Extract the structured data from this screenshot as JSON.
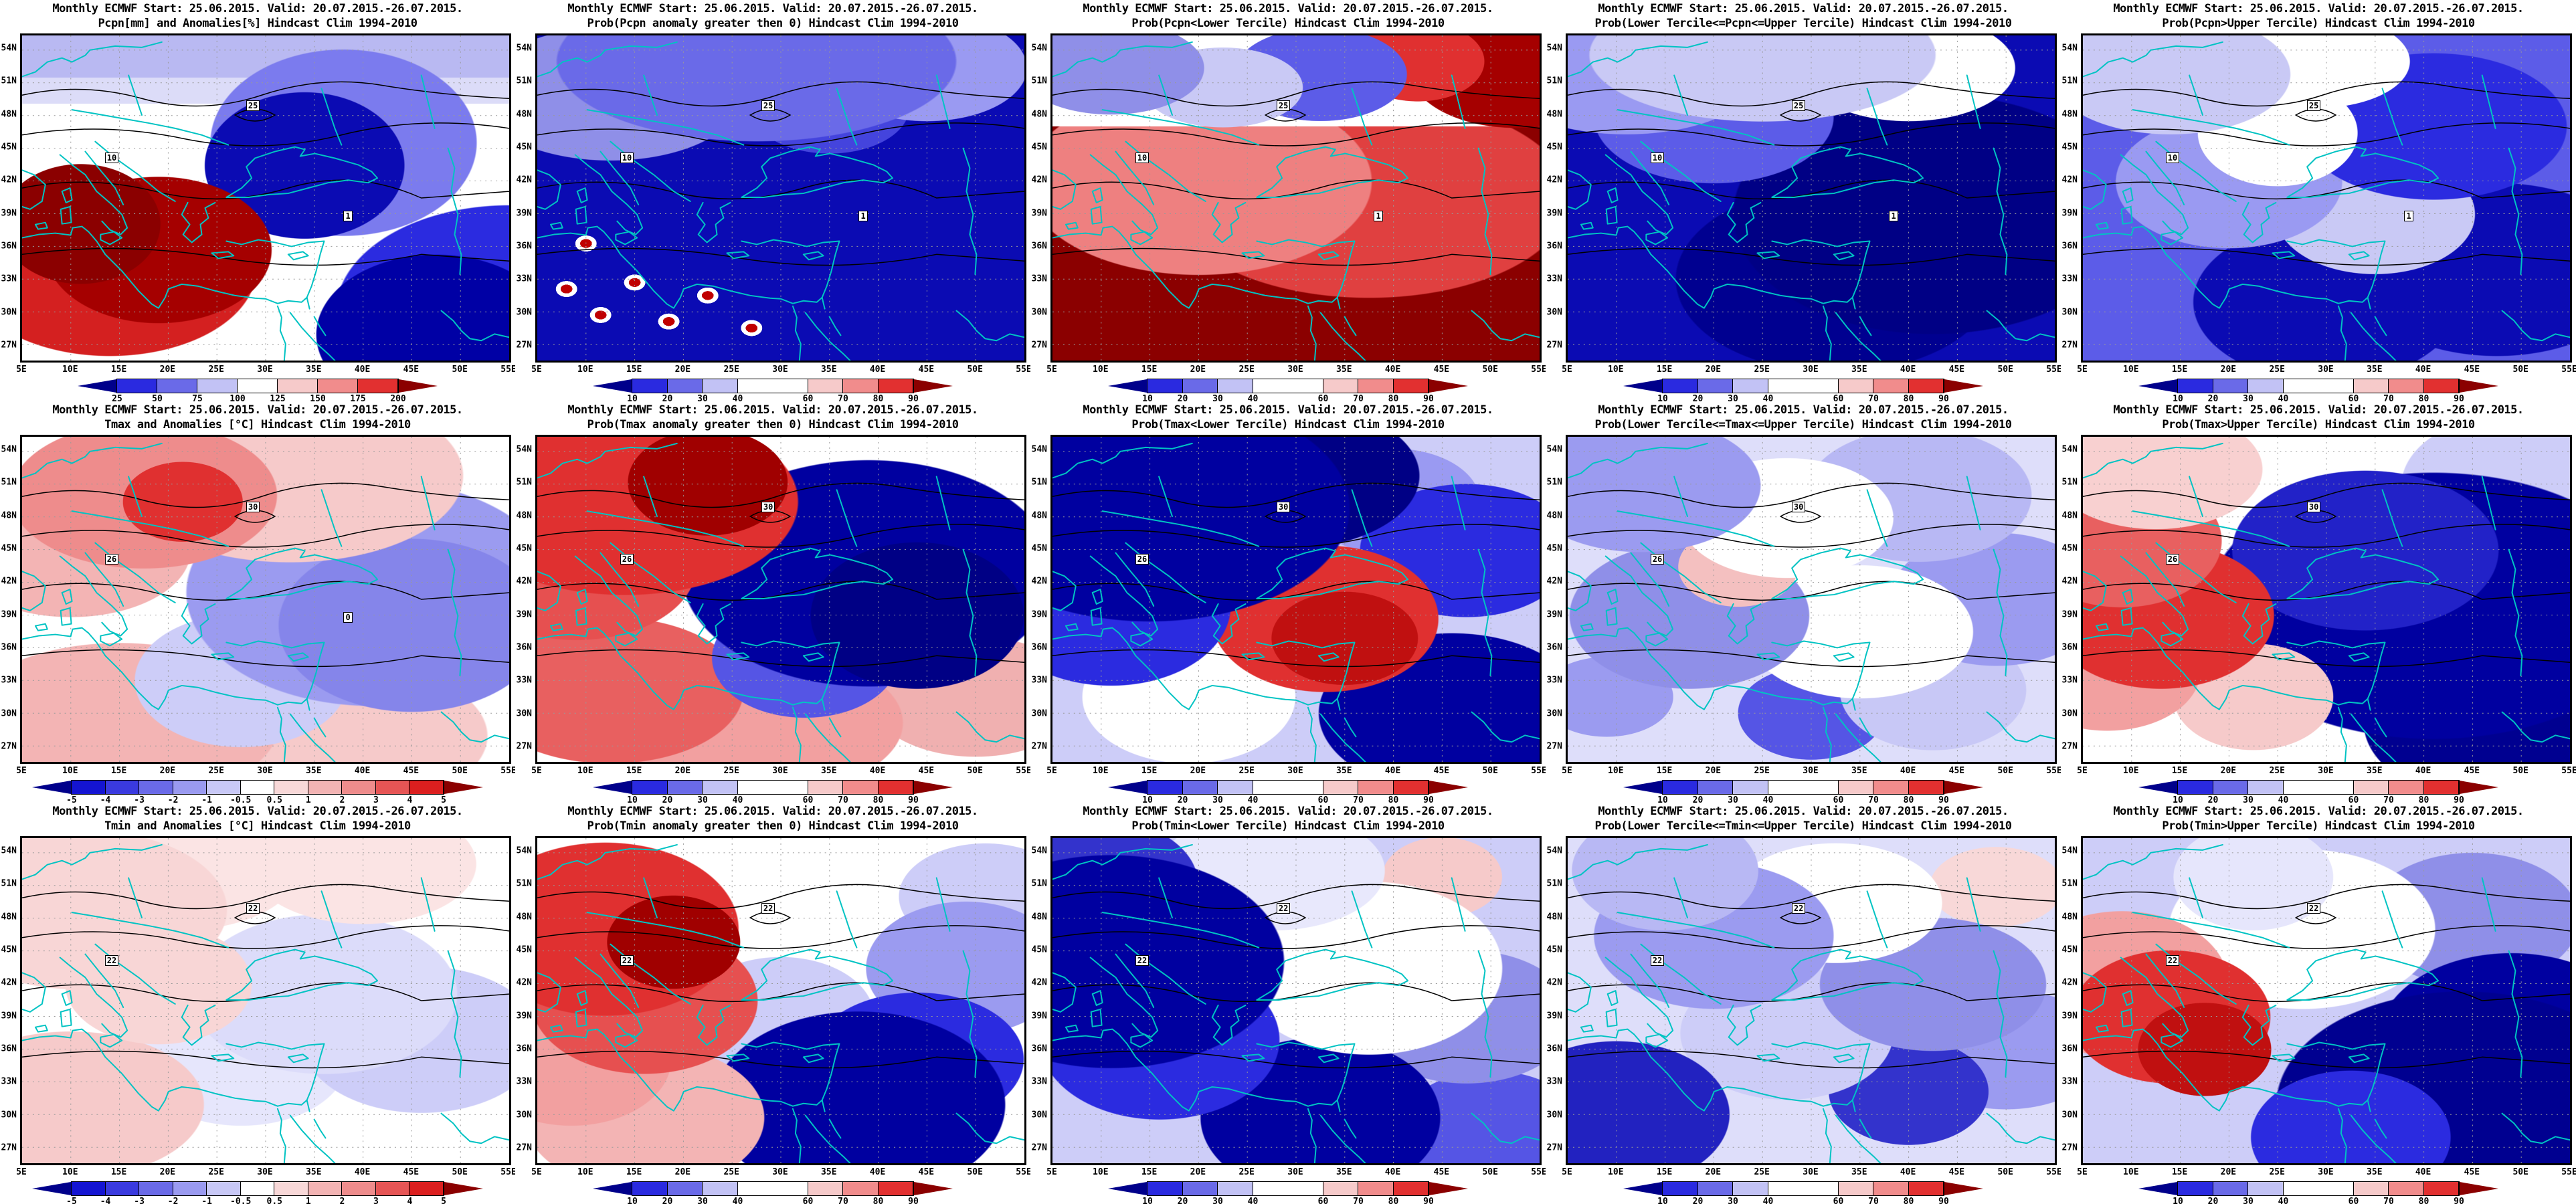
{
  "figure": {
    "title_line1": "Monthly ECMWF Start: 25.06.2015. Valid: 20.07.2015.-26.07.2015.",
    "hindcast_clim": "Hindcast Clim 1994-2010"
  },
  "axes": {
    "lat_labels": [
      "54N",
      "51N",
      "48N",
      "45N",
      "42N",
      "39N",
      "36N",
      "33N",
      "30N",
      "27N"
    ],
    "lon_labels": [
      "5E",
      "10E",
      "15E",
      "20E",
      "25E",
      "30E",
      "35E",
      "40E",
      "45E",
      "50E",
      "55E"
    ]
  },
  "map_style_colors": {
    "coastline": "#00c3c3",
    "contour": "#000000",
    "gridline": "#999999",
    "border": "#000000"
  },
  "colorbars": {
    "pcpn": {
      "ticks": [
        "25",
        "50",
        "75",
        "100",
        "125",
        "150",
        "175",
        "200"
      ],
      "tick_positions": [
        0,
        1,
        2,
        3,
        4,
        5,
        6,
        7
      ],
      "segment_widths": [
        1,
        1,
        1,
        1,
        1,
        1,
        1
      ],
      "segment_colors": [
        "#2a2ae0",
        "#6a6ae8",
        "#c2c2f5",
        "#ffffff",
        "#f6caca",
        "#f18c8c",
        "#e23030"
      ],
      "arrow_left_color": "#00008b",
      "arrow_right_color": "#8b0000"
    },
    "prob": {
      "ticks": [
        "10",
        "20",
        "30",
        "40",
        "60",
        "70",
        "80",
        "90"
      ],
      "tick_positions": [
        0,
        1,
        2,
        3,
        5,
        6,
        7,
        8
      ],
      "segment_widths": [
        1,
        1,
        1,
        2,
        1,
        1,
        1
      ],
      "segment_colors": [
        "#2a2ae0",
        "#6a6ae8",
        "#c2c2f5",
        "#ffffff",
        "#f6caca",
        "#f18c8c",
        "#e23030"
      ],
      "arrow_left_color": "#00008b",
      "arrow_right_color": "#8b0000"
    },
    "temp": {
      "ticks": [
        "-5",
        "-4",
        "-3",
        "-2",
        "-1",
        "-0.5",
        "0.5",
        "1",
        "2",
        "3",
        "4",
        "5"
      ],
      "tick_positions": [
        0,
        1,
        2,
        3,
        4,
        5,
        6,
        7,
        8,
        9,
        10,
        11
      ],
      "segment_widths": [
        1,
        1,
        1,
        1,
        1,
        1,
        1,
        1,
        1,
        1,
        1
      ],
      "segment_colors": [
        "#1414d2",
        "#3a3adf",
        "#6a6ae8",
        "#9a9af0",
        "#c8c8f6",
        "#ffffff",
        "#f8d8d8",
        "#f3b4b4",
        "#ee8c8c",
        "#e65555",
        "#dc1f1f"
      ],
      "arrow_left_color": "#00008b",
      "arrow_right_color": "#8b0000"
    }
  },
  "panels": [
    {
      "id": "r1c1",
      "subtitle": "Pcpn[mm] and Anomalies[%] Hindcast Clim 1994-2010",
      "colorbar": "pcpn",
      "contour_labels": [
        "10",
        "25",
        "1"
      ]
    },
    {
      "id": "r1c2",
      "subtitle": "Prob(Pcpn anomaly greater then 0) Hindcast Clim 1994-2010",
      "colorbar": "prob",
      "contour_labels": [
        "10",
        "25",
        "1"
      ]
    },
    {
      "id": "r1c3",
      "subtitle": "Prob(Pcpn<Lower Tercile) Hindcast Clim 1994-2010",
      "colorbar": "prob",
      "contour_labels": [
        "10",
        "25",
        "1"
      ]
    },
    {
      "id": "r1c4",
      "subtitle": "Prob(Lower Tercile<=Pcpn<=Upper Tercile) Hindcast Clim 1994-2010",
      "colorbar": "prob",
      "contour_labels": [
        "10",
        "25",
        "1"
      ]
    },
    {
      "id": "r1c5",
      "subtitle": "Prob(Pcpn>Upper Tercile) Hindcast Clim 1994-2010",
      "colorbar": "prob",
      "contour_labels": [
        "10",
        "25",
        "1"
      ]
    },
    {
      "id": "r2c1",
      "subtitle": "Tmax and Anomalies [°C] Hindcast Clim 1994-2010",
      "colorbar": "temp",
      "contour_labels": [
        "26",
        "30",
        "0"
      ]
    },
    {
      "id": "r2c2",
      "subtitle": "Prob(Tmax anomaly greater then 0) Hindcast Clim 1994-2010",
      "colorbar": "prob",
      "contour_labels": [
        "26",
        "30"
      ]
    },
    {
      "id": "r2c3",
      "subtitle": "Prob(Tmax<Lower Tercile) Hindcast Clim 1994-2010",
      "colorbar": "prob",
      "contour_labels": [
        "26",
        "30"
      ]
    },
    {
      "id": "r2c4",
      "subtitle": "Prob(Lower Tercile<=Tmax<=Upper Tercile) Hindcast Clim 1994-2010",
      "colorbar": "prob",
      "contour_labels": [
        "26",
        "30"
      ]
    },
    {
      "id": "r2c5",
      "subtitle": "Prob(Tmax>Upper Tercile) Hindcast Clim 1994-2010",
      "colorbar": "prob",
      "contour_labels": [
        "26",
        "30"
      ]
    },
    {
      "id": "r3c1",
      "subtitle": "Tmin and Anomalies [°C] Hindcast Clim 1994-2010",
      "colorbar": "temp",
      "contour_labels": [
        "22",
        "22"
      ]
    },
    {
      "id": "r3c2",
      "subtitle": "Prob(Tmin anomaly greater then 0) Hindcast Clim 1994-2010",
      "colorbar": "prob",
      "contour_labels": [
        "22",
        "22"
      ]
    },
    {
      "id": "r3c3",
      "subtitle": "Prob(Tmin<Lower Tercile) Hindcast Clim 1994-2010",
      "colorbar": "prob",
      "contour_labels": [
        "22",
        "22"
      ]
    },
    {
      "id": "r3c4",
      "subtitle": "Prob(Lower Tercile<=Tmin<=Upper Tercile) Hindcast Clim 1994-2010",
      "colorbar": "prob",
      "contour_labels": [
        "22",
        "22"
      ]
    },
    {
      "id": "r3c5",
      "subtitle": "Prob(Tmin>Upper Tercile) Hindcast Clim 1994-2010",
      "colorbar": "prob",
      "contour_labels": [
        "22",
        "22"
      ]
    }
  ]
}
